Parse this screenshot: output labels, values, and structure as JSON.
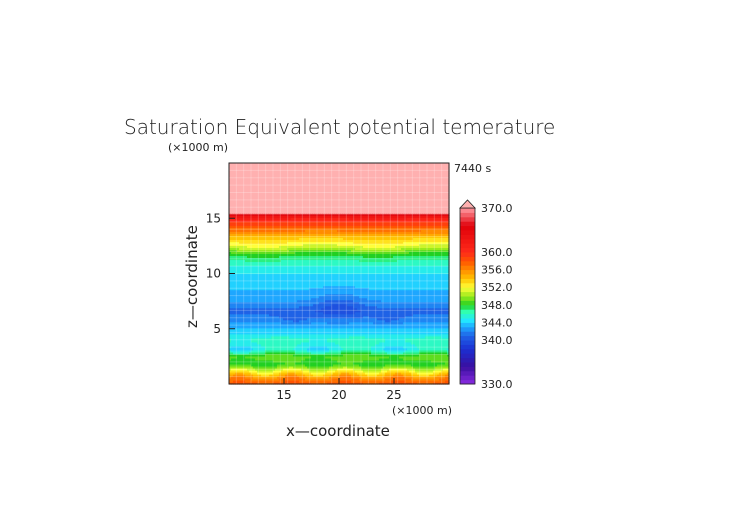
{
  "chart_data": {
    "type": "heatmap",
    "title": "Saturation Equivalent potential temerature",
    "time_label": "7440 s",
    "xlabel": "x—coordinate",
    "ylabel": "z—coordinate",
    "x_unit": "(×1000 m)",
    "y_unit": "(×1000 m)",
    "xlim": [
      10,
      30
    ],
    "ylim": [
      0,
      20
    ],
    "x_ticks": [
      15,
      20,
      25
    ],
    "y_ticks": [
      5,
      10,
      15
    ],
    "x_tick_labels": [
      "15",
      "20",
      "25"
    ],
    "y_tick_labels": [
      "5",
      "10",
      "15"
    ],
    "grid": true,
    "colorbar": {
      "levels": [
        330,
        331,
        332,
        333,
        334,
        335,
        336,
        337,
        338,
        339,
        340,
        341,
        342,
        343,
        344,
        345,
        346,
        347,
        348,
        349,
        350,
        351,
        352,
        353,
        354,
        355,
        356,
        357,
        358,
        359,
        360,
        361,
        362,
        363,
        364,
        365,
        366,
        367,
        368,
        369,
        370
      ],
      "tick_values": [
        370,
        360,
        356,
        352,
        348,
        344,
        340,
        330
      ],
      "tick_labels": [
        "370.0",
        "360.0",
        "356.0",
        "352.0",
        "348.0",
        "344.0",
        "340.0",
        "330.0"
      ],
      "extend": "max"
    },
    "z_profile": {
      "z": [
        0,
        0.6,
        1.2,
        1.8,
        2.5,
        3.2,
        4.0,
        4.8,
        5.4,
        6.0,
        6.6,
        7.2,
        7.8,
        8.5,
        9.2,
        10.0,
        11.0,
        11.8,
        12.4,
        13.0,
        13.6,
        14.2,
        14.8,
        15.2,
        15.6,
        20
      ],
      "theta": [
        358,
        356,
        352,
        348,
        349,
        345,
        346,
        344,
        343,
        342,
        341,
        342,
        343,
        343.5,
        344,
        344.5,
        346,
        348,
        351,
        353,
        355,
        358,
        360,
        363,
        371,
        371
      ]
    }
  }
}
